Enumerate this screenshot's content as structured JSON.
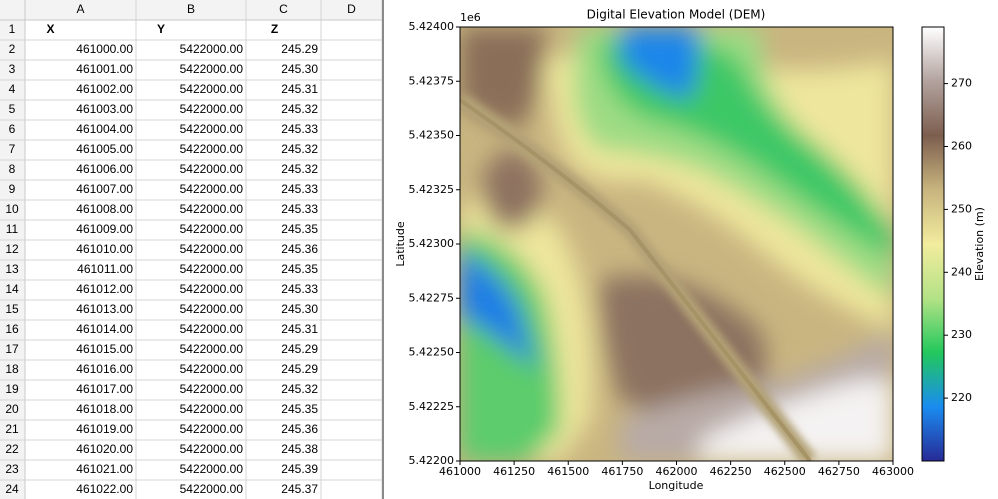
{
  "sheet": {
    "columns": [
      "A",
      "B",
      "C",
      "D"
    ],
    "row_numbers": [
      1,
      2,
      3,
      4,
      5,
      6,
      7,
      8,
      9,
      10,
      11,
      12,
      13,
      14,
      15,
      16,
      17,
      18,
      19,
      20,
      21,
      22,
      23,
      24
    ],
    "header": [
      "X",
      "Y",
      "Z"
    ],
    "rows": [
      [
        "461000.00",
        "5422000.00",
        "245.29"
      ],
      [
        "461001.00",
        "5422000.00",
        "245.30"
      ],
      [
        "461002.00",
        "5422000.00",
        "245.31"
      ],
      [
        "461003.00",
        "5422000.00",
        "245.32"
      ],
      [
        "461004.00",
        "5422000.00",
        "245.33"
      ],
      [
        "461005.00",
        "5422000.00",
        "245.32"
      ],
      [
        "461006.00",
        "5422000.00",
        "245.32"
      ],
      [
        "461007.00",
        "5422000.00",
        "245.33"
      ],
      [
        "461008.00",
        "5422000.00",
        "245.33"
      ],
      [
        "461009.00",
        "5422000.00",
        "245.35"
      ],
      [
        "461010.00",
        "5422000.00",
        "245.36"
      ],
      [
        "461011.00",
        "5422000.00",
        "245.35"
      ],
      [
        "461012.00",
        "5422000.00",
        "245.33"
      ],
      [
        "461013.00",
        "5422000.00",
        "245.30"
      ],
      [
        "461014.00",
        "5422000.00",
        "245.31"
      ],
      [
        "461015.00",
        "5422000.00",
        "245.29"
      ],
      [
        "461016.00",
        "5422000.00",
        "245.29"
      ],
      [
        "461017.00",
        "5422000.00",
        "245.32"
      ],
      [
        "461018.00",
        "5422000.00",
        "245.35"
      ],
      [
        "461019.00",
        "5422000.00",
        "245.36"
      ],
      [
        "461020.00",
        "5422000.00",
        "245.38"
      ],
      [
        "461021.00",
        "5422000.00",
        "245.39"
      ],
      [
        "461022.00",
        "5422000.00",
        "245.37"
      ]
    ]
  },
  "chart_data": {
    "type": "heatmap",
    "title": "Digital Elevation Model (DEM)",
    "x_label": "Longitude",
    "y_label": "Latitude",
    "y_offset_text": "1e6",
    "xlim": [
      461000,
      463000
    ],
    "xticks": [
      461000,
      461250,
      461500,
      461750,
      462000,
      462250,
      462500,
      462750,
      463000
    ],
    "ylim": [
      5422000,
      5424000
    ],
    "yticks": [
      {
        "value": 5422000,
        "label": "5.42200"
      },
      {
        "value": 5422250,
        "label": "5.42225"
      },
      {
        "value": 5422500,
        "label": "5.42250"
      },
      {
        "value": 5422750,
        "label": "5.42275"
      },
      {
        "value": 5423000,
        "label": "5.42300"
      },
      {
        "value": 5423250,
        "label": "5.42325"
      },
      {
        "value": 5423500,
        "label": "5.42350"
      },
      {
        "value": 5423750,
        "label": "5.42375"
      },
      {
        "value": 5424000,
        "label": "5.42400"
      }
    ],
    "colorbar": {
      "label": "Elevation (m)",
      "lim": [
        210,
        279
      ],
      "ticks": [
        220,
        230,
        240,
        250,
        260,
        270
      ],
      "colors": [
        "#272a96",
        "#1a8cf0",
        "#22c85c",
        "#b4e286",
        "#f2ec9e",
        "#c8b47e",
        "#7c5e4e",
        "#b2a29e",
        "#ffffff"
      ]
    }
  }
}
